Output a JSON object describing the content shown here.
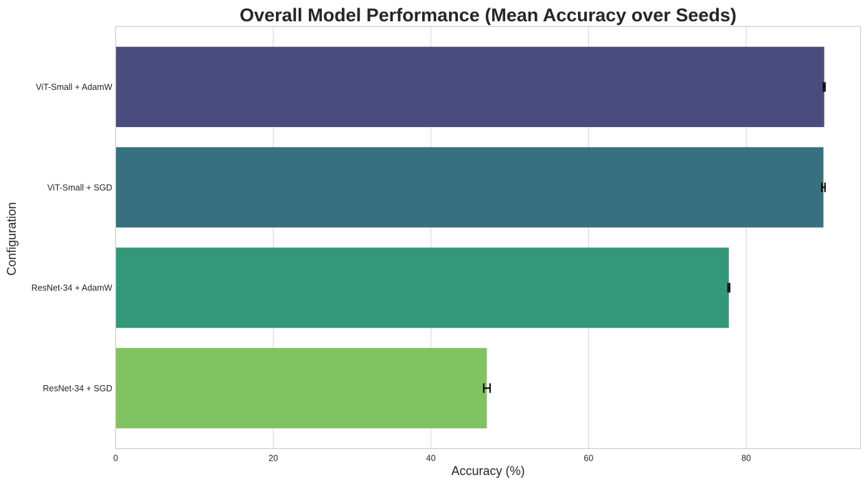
{
  "chart_data": {
    "type": "bar",
    "orientation": "horizontal",
    "title": "Overall Model Performance (Mean Accuracy over Seeds)",
    "xlabel": "Accuracy (%)",
    "ylabel": "Configuration",
    "categories": [
      "ViT-Small + AdamW",
      "ViT-Small + SGD",
      "ResNet-34 + AdamW",
      "ResNet-34 + SGD"
    ],
    "values": [
      89.9,
      89.8,
      77.8,
      47.1
    ],
    "errors": [
      0.1,
      0.2,
      0.1,
      0.4
    ],
    "colors": [
      "#4b4c7e",
      "#37717f",
      "#35977a",
      "#81c262"
    ],
    "xlim": [
      0,
      94.5
    ],
    "xticks": [
      0,
      20,
      40,
      60,
      80
    ],
    "grid": true,
    "error_bar_color": "#000000"
  }
}
